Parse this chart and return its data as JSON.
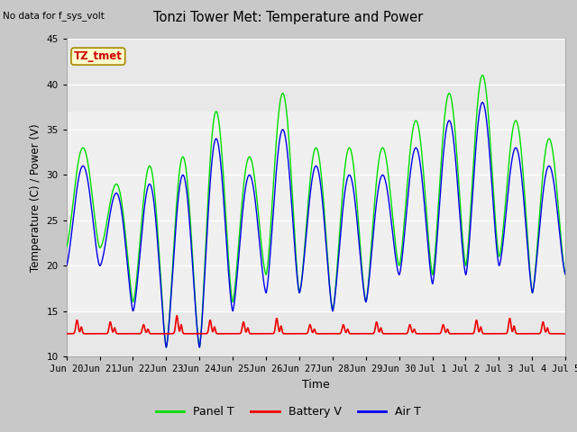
{
  "title": "Tonzi Tower Met: Temperature and Power",
  "xlabel": "Time",
  "ylabel": "Temperature (C) / Power (V)",
  "ylim": [
    10,
    45
  ],
  "yticks": [
    10,
    15,
    20,
    25,
    30,
    35,
    40,
    45
  ],
  "fig_bg_color": "#c8c8c8",
  "plot_bg_color": "#e8e8e8",
  "inner_bg_color": "#f0f0f0",
  "note_text": "No data for f_sys_volt",
  "annotation_text": "TZ_tmet",
  "annotation_bg": "#ffffcc",
  "annotation_border": "#aa8800",
  "panel_t_color": "#00dd00",
  "battery_v_color": "#ee0000",
  "air_t_color": "#0000ee",
  "legend_labels": [
    "Panel T",
    "Battery V",
    "Air T"
  ],
  "xtick_labels": [
    "Jun 20",
    "Jun 21",
    "Jun 22",
    "Jun 23",
    "Jun 24",
    "Jun 25",
    "Jun 26",
    "Jun 27",
    "Jun 28",
    "Jun 29",
    "Jun 30",
    "Jul 1",
    "Jul 2",
    "Jul 3",
    "Jul 4",
    "Jul 5"
  ],
  "panel_peaks": [
    33,
    29,
    31,
    32,
    37,
    32,
    39,
    33,
    33,
    33,
    36,
    39,
    41,
    36,
    34
  ],
  "air_peaks": [
    31,
    28,
    29,
    30,
    34,
    30,
    35,
    31,
    30,
    30,
    33,
    36,
    38,
    33,
    31
  ],
  "panel_nights": [
    22,
    16,
    11,
    11,
    16,
    19,
    17,
    15,
    16,
    20,
    19,
    20,
    21,
    17,
    19
  ],
  "air_nights": [
    20,
    15,
    11,
    11,
    15,
    17,
    17,
    15,
    16,
    19,
    18,
    19,
    20,
    17,
    19
  ],
  "batt_spikes": [
    14.0,
    13.8,
    13.5,
    14.5,
    14.0,
    13.8,
    14.2,
    13.5,
    13.5,
    13.8,
    13.5,
    13.5,
    14.0,
    14.2,
    13.8
  ],
  "n_days": 15,
  "pts_per_day": 144
}
